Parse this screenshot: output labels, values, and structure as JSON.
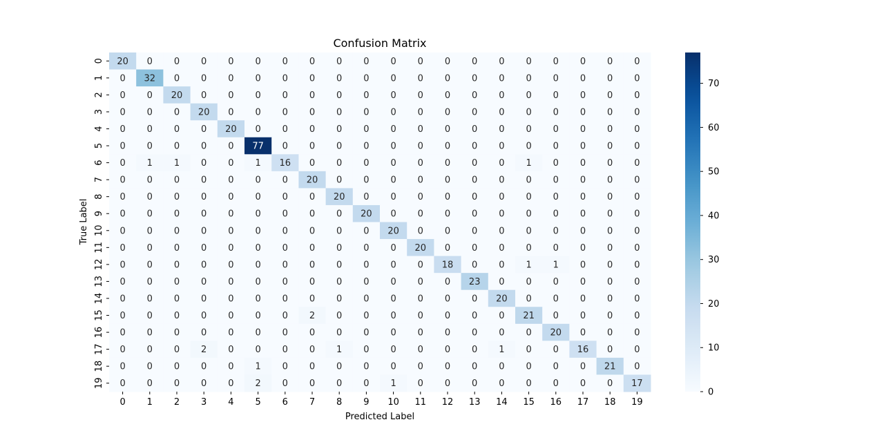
{
  "chart_data": {
    "type": "heatmap",
    "title": "Confusion Matrix",
    "xlabel": "Predicted Label",
    "ylabel": "True Label",
    "x_categories": [
      "0",
      "1",
      "2",
      "3",
      "4",
      "5",
      "6",
      "7",
      "8",
      "9",
      "10",
      "11",
      "12",
      "13",
      "14",
      "15",
      "16",
      "17",
      "18",
      "19"
    ],
    "y_categories": [
      "0",
      "1",
      "2",
      "3",
      "4",
      "5",
      "6",
      "7",
      "8",
      "9",
      "10",
      "11",
      "12",
      "13",
      "14",
      "15",
      "16",
      "17",
      "18",
      "19"
    ],
    "matrix": [
      [
        20,
        0,
        0,
        0,
        0,
        0,
        0,
        0,
        0,
        0,
        0,
        0,
        0,
        0,
        0,
        0,
        0,
        0,
        0,
        0
      ],
      [
        0,
        32,
        0,
        0,
        0,
        0,
        0,
        0,
        0,
        0,
        0,
        0,
        0,
        0,
        0,
        0,
        0,
        0,
        0,
        0
      ],
      [
        0,
        0,
        20,
        0,
        0,
        0,
        0,
        0,
        0,
        0,
        0,
        0,
        0,
        0,
        0,
        0,
        0,
        0,
        0,
        0
      ],
      [
        0,
        0,
        0,
        20,
        0,
        0,
        0,
        0,
        0,
        0,
        0,
        0,
        0,
        0,
        0,
        0,
        0,
        0,
        0,
        0
      ],
      [
        0,
        0,
        0,
        0,
        20,
        0,
        0,
        0,
        0,
        0,
        0,
        0,
        0,
        0,
        0,
        0,
        0,
        0,
        0,
        0
      ],
      [
        0,
        0,
        0,
        0,
        0,
        77,
        0,
        0,
        0,
        0,
        0,
        0,
        0,
        0,
        0,
        0,
        0,
        0,
        0,
        0
      ],
      [
        0,
        1,
        1,
        0,
        0,
        1,
        16,
        0,
        0,
        0,
        0,
        0,
        0,
        0,
        0,
        1,
        0,
        0,
        0,
        0
      ],
      [
        0,
        0,
        0,
        0,
        0,
        0,
        0,
        20,
        0,
        0,
        0,
        0,
        0,
        0,
        0,
        0,
        0,
        0,
        0,
        0
      ],
      [
        0,
        0,
        0,
        0,
        0,
        0,
        0,
        0,
        20,
        0,
        0,
        0,
        0,
        0,
        0,
        0,
        0,
        0,
        0,
        0
      ],
      [
        0,
        0,
        0,
        0,
        0,
        0,
        0,
        0,
        0,
        20,
        0,
        0,
        0,
        0,
        0,
        0,
        0,
        0,
        0,
        0
      ],
      [
        0,
        0,
        0,
        0,
        0,
        0,
        0,
        0,
        0,
        0,
        20,
        0,
        0,
        0,
        0,
        0,
        0,
        0,
        0,
        0
      ],
      [
        0,
        0,
        0,
        0,
        0,
        0,
        0,
        0,
        0,
        0,
        0,
        20,
        0,
        0,
        0,
        0,
        0,
        0,
        0,
        0
      ],
      [
        0,
        0,
        0,
        0,
        0,
        0,
        0,
        0,
        0,
        0,
        0,
        0,
        18,
        0,
        0,
        1,
        1,
        0,
        0,
        0
      ],
      [
        0,
        0,
        0,
        0,
        0,
        0,
        0,
        0,
        0,
        0,
        0,
        0,
        0,
        23,
        0,
        0,
        0,
        0,
        0,
        0
      ],
      [
        0,
        0,
        0,
        0,
        0,
        0,
        0,
        0,
        0,
        0,
        0,
        0,
        0,
        0,
        20,
        0,
        0,
        0,
        0,
        0
      ],
      [
        0,
        0,
        0,
        0,
        0,
        0,
        0,
        2,
        0,
        0,
        0,
        0,
        0,
        0,
        0,
        21,
        0,
        0,
        0,
        0
      ],
      [
        0,
        0,
        0,
        0,
        0,
        0,
        0,
        0,
        0,
        0,
        0,
        0,
        0,
        0,
        0,
        0,
        20,
        0,
        0,
        0
      ],
      [
        0,
        0,
        0,
        2,
        0,
        0,
        0,
        0,
        1,
        0,
        0,
        0,
        0,
        0,
        1,
        0,
        0,
        16,
        0,
        0
      ],
      [
        0,
        0,
        0,
        0,
        0,
        1,
        0,
        0,
        0,
        0,
        0,
        0,
        0,
        0,
        0,
        0,
        0,
        0,
        21,
        0
      ],
      [
        0,
        0,
        0,
        0,
        0,
        2,
        0,
        0,
        0,
        0,
        1,
        0,
        0,
        0,
        0,
        0,
        0,
        0,
        0,
        17
      ]
    ],
    "colorbar": {
      "colormap": "Blues",
      "range": [
        0,
        77
      ],
      "ticks": [
        0,
        10,
        20,
        30,
        40,
        50,
        60,
        70
      ]
    },
    "grid": false
  }
}
